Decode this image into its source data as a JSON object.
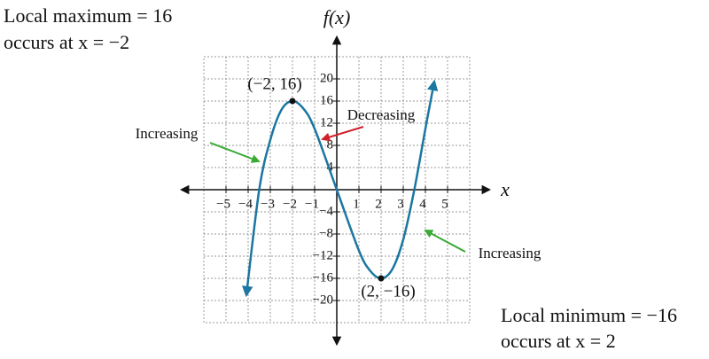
{
  "chart_data": {
    "type": "line",
    "x_label": "x",
    "y_label": "f(x)",
    "x": [
      -4.08,
      -3.5,
      -3,
      -2.5,
      -2,
      -1.5,
      -1,
      0,
      1,
      1.5,
      2,
      2.5,
      3,
      3.5,
      4,
      4.4
    ],
    "values": [
      -19,
      0,
      9,
      14.4,
      16,
      14.6,
      11,
      0,
      -11,
      -14.6,
      -16,
      -14.4,
      -9,
      0,
      11,
      19.5
    ],
    "color": "#1b76a0",
    "xlim": [
      -6,
      6
    ],
    "ylim": [
      -24,
      24
    ],
    "xticks": [
      {
        "value": -5,
        "label": "−5"
      },
      {
        "value": -4,
        "label": "−4"
      },
      {
        "value": -3,
        "label": "−3"
      },
      {
        "value": -2,
        "label": "−2"
      },
      {
        "value": -1,
        "label": "−1"
      },
      1,
      2,
      3,
      4,
      5
    ],
    "yticks": [
      {
        "value": -20,
        "label": "−20"
      },
      {
        "value": -16,
        "label": "−16"
      },
      {
        "value": -12,
        "label": "−12"
      },
      {
        "value": -8,
        "label": "−8"
      },
      {
        "value": -4,
        "label": "−4"
      },
      4,
      8,
      12,
      16,
      20
    ],
    "grid": true,
    "points": [
      {
        "x": -2,
        "y": 16,
        "label": "(−2, 16)"
      },
      {
        "x": 2,
        "y": -16,
        "label": "(2, −16)"
      }
    ],
    "annotations": [
      {
        "text": "Local maximum = 16"
      },
      {
        "text": "occurs at x = −2"
      },
      {
        "text": "Decreasing",
        "color": "#d0202a"
      },
      {
        "text": "Increasing",
        "color": "#3aaa35"
      },
      {
        "text": "Increasing",
        "color": "#3aaa35"
      },
      {
        "text": "Local minimum = −16"
      },
      {
        "text": "occurs at x = 2"
      }
    ]
  }
}
